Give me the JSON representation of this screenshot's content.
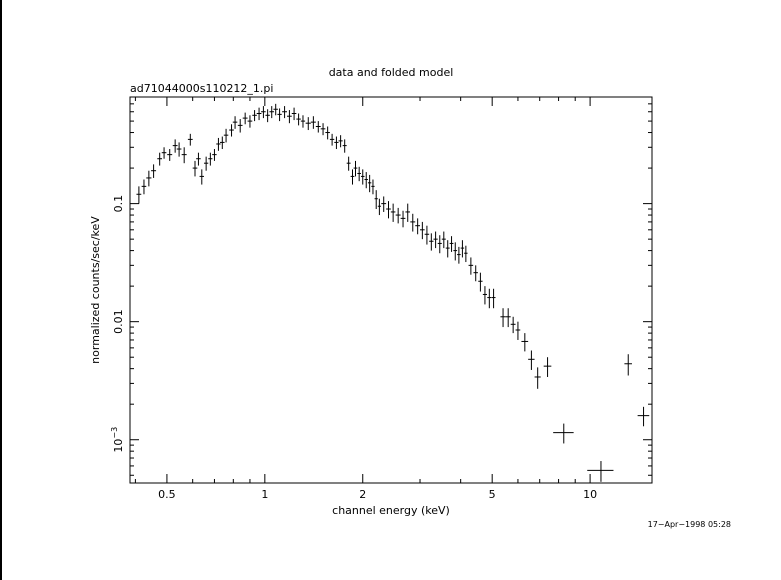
{
  "chart_data": {
    "type": "scatter",
    "title": "data and folded model",
    "subtitle": "ad71044000s110212_1.pi",
    "xlabel": "channel energy (keV)",
    "ylabel": "normalized counts/sec/keV",
    "xscale": "log",
    "yscale": "log",
    "xlim": [
      0.385,
      15.5
    ],
    "ylim": [
      0.00043,
      0.8
    ],
    "xticks": [
      {
        "value": 0.5,
        "label": "0.5"
      },
      {
        "value": 1,
        "label": "1"
      },
      {
        "value": 2,
        "label": "2"
      },
      {
        "value": 5,
        "label": "5"
      },
      {
        "value": 10,
        "label": "10"
      }
    ],
    "yticks": [
      {
        "value": 0.1,
        "label": "0.1"
      },
      {
        "value": 0.01,
        "label": "0.01"
      },
      {
        "value": 0.001,
        "label": "10",
        "exp": "−3"
      }
    ],
    "timestamp": "17−Apr−1998 05:28",
    "grid": false,
    "series": [
      {
        "points": [
          [
            0.41,
            0.12,
            0.02,
            0.02
          ],
          [
            0.425,
            0.14,
            0.02,
            0.02
          ],
          [
            0.44,
            0.165,
            0.025,
            0.025
          ],
          [
            0.455,
            0.19,
            0.025,
            0.025
          ],
          [
            0.475,
            0.24,
            0.03,
            0.03
          ],
          [
            0.49,
            0.27,
            0.03,
            0.03
          ],
          [
            0.51,
            0.26,
            0.03,
            0.03
          ],
          [
            0.53,
            0.31,
            0.04,
            0.04
          ],
          [
            0.545,
            0.29,
            0.04,
            0.04
          ],
          [
            0.565,
            0.26,
            0.04,
            0.04
          ],
          [
            0.59,
            0.35,
            0.04,
            0.04
          ],
          [
            0.61,
            0.2,
            0.03,
            0.03
          ],
          [
            0.625,
            0.24,
            0.03,
            0.03
          ],
          [
            0.64,
            0.17,
            0.025,
            0.025
          ],
          [
            0.66,
            0.22,
            0.03,
            0.03
          ],
          [
            0.68,
            0.24,
            0.03,
            0.03
          ],
          [
            0.7,
            0.26,
            0.03,
            0.03
          ],
          [
            0.72,
            0.32,
            0.04,
            0.04
          ],
          [
            0.74,
            0.33,
            0.04,
            0.04
          ],
          [
            0.76,
            0.38,
            0.05,
            0.05
          ],
          [
            0.79,
            0.42,
            0.05,
            0.05
          ],
          [
            0.81,
            0.49,
            0.06,
            0.06
          ],
          [
            0.84,
            0.46,
            0.06,
            0.06
          ],
          [
            0.87,
            0.53,
            0.06,
            0.06
          ],
          [
            0.9,
            0.5,
            0.06,
            0.06
          ],
          [
            0.93,
            0.56,
            0.06,
            0.06
          ],
          [
            0.96,
            0.58,
            0.07,
            0.07
          ],
          [
            0.99,
            0.6,
            0.07,
            0.07
          ],
          [
            1.02,
            0.56,
            0.07,
            0.07
          ],
          [
            1.05,
            0.6,
            0.07,
            0.07
          ],
          [
            1.08,
            0.63,
            0.07,
            0.07
          ],
          [
            1.11,
            0.57,
            0.07,
            0.07
          ],
          [
            1.15,
            0.6,
            0.07,
            0.07
          ],
          [
            1.19,
            0.55,
            0.07,
            0.07
          ],
          [
            1.23,
            0.58,
            0.07,
            0.07
          ],
          [
            1.27,
            0.52,
            0.06,
            0.06
          ],
          [
            1.31,
            0.5,
            0.06,
            0.06
          ],
          [
            1.36,
            0.48,
            0.06,
            0.06
          ],
          [
            1.41,
            0.49,
            0.06,
            0.06
          ],
          [
            1.46,
            0.45,
            0.05,
            0.05
          ],
          [
            1.51,
            0.43,
            0.05,
            0.05
          ],
          [
            1.56,
            0.4,
            0.05,
            0.05
          ],
          [
            1.61,
            0.35,
            0.04,
            0.04
          ],
          [
            1.66,
            0.33,
            0.04,
            0.04
          ],
          [
            1.71,
            0.34,
            0.04,
            0.04
          ],
          [
            1.76,
            0.31,
            0.04,
            0.04
          ],
          [
            1.81,
            0.22,
            0.03,
            0.03
          ],
          [
            1.86,
            0.17,
            0.025,
            0.025
          ],
          [
            1.9,
            0.2,
            0.03,
            0.03
          ],
          [
            1.95,
            0.18,
            0.025,
            0.025
          ],
          [
            2.0,
            0.17,
            0.025,
            0.025
          ],
          [
            2.05,
            0.16,
            0.025,
            0.025
          ],
          [
            2.1,
            0.15,
            0.025,
            0.025
          ],
          [
            2.15,
            0.14,
            0.02,
            0.02
          ],
          [
            2.2,
            0.11,
            0.02,
            0.02
          ],
          [
            2.25,
            0.095,
            0.015,
            0.015
          ],
          [
            2.32,
            0.1,
            0.015,
            0.015
          ],
          [
            2.4,
            0.09,
            0.015,
            0.015
          ],
          [
            2.48,
            0.085,
            0.015,
            0.015
          ],
          [
            2.57,
            0.08,
            0.012,
            0.012
          ],
          [
            2.66,
            0.075,
            0.012,
            0.012
          ],
          [
            2.75,
            0.085,
            0.015,
            0.015
          ],
          [
            2.85,
            0.07,
            0.012,
            0.012
          ],
          [
            2.95,
            0.065,
            0.01,
            0.01
          ],
          [
            3.05,
            0.06,
            0.01,
            0.01
          ],
          [
            3.15,
            0.055,
            0.01,
            0.01
          ],
          [
            3.25,
            0.048,
            0.008,
            0.008
          ],
          [
            3.35,
            0.05,
            0.008,
            0.008
          ],
          [
            3.45,
            0.046,
            0.008,
            0.008
          ],
          [
            3.55,
            0.05,
            0.008,
            0.008
          ],
          [
            3.65,
            0.042,
            0.007,
            0.007
          ],
          [
            3.75,
            0.046,
            0.007,
            0.007
          ],
          [
            3.85,
            0.04,
            0.007,
            0.007
          ],
          [
            3.95,
            0.037,
            0.006,
            0.006
          ],
          [
            4.05,
            0.042,
            0.007,
            0.007
          ],
          [
            4.15,
            0.038,
            0.006,
            0.006
          ],
          [
            4.3,
            0.03,
            0.005,
            0.005
          ],
          [
            4.45,
            0.026,
            0.004,
            0.004
          ],
          [
            4.6,
            0.022,
            0.004,
            0.004
          ],
          [
            4.75,
            0.017,
            0.003,
            0.003
          ],
          [
            4.9,
            0.016,
            0.003,
            0.003
          ],
          [
            5.05,
            0.016,
            0.003,
            0.003
          ],
          [
            5.4,
            0.011,
            0.002,
            0.002
          ],
          [
            5.6,
            0.011,
            0.002,
            0.002
          ],
          [
            5.8,
            0.0095,
            0.0015,
            0.0015
          ],
          [
            6.0,
            0.0085,
            0.0015,
            0.0015
          ],
          [
            6.3,
            0.0068,
            0.0012,
            0.0012
          ],
          [
            6.6,
            0.0048,
            0.0009,
            0.0009
          ],
          [
            6.9,
            0.0034,
            0.0007,
            0.0007
          ],
          [
            7.4,
            0.0042,
            0.0008,
            0.0008
          ],
          [
            8.3,
            0.00115,
            0.00022,
            0.00022
          ],
          [
            10.8,
            0.00055,
            0.00011,
            0.00011
          ],
          [
            13.1,
            0.0044,
            0.0009,
            0.0009
          ],
          [
            14.6,
            0.0016,
            0.0003,
            0.0003
          ]
        ],
        "xerr": [
          0.007,
          0.007,
          0.008,
          0.008,
          0.008,
          0.008,
          0.009,
          0.009,
          0.009,
          0.01,
          0.01,
          0.01,
          0.01,
          0.01,
          0.01,
          0.01,
          0.011,
          0.011,
          0.012,
          0.012,
          0.013,
          0.013,
          0.014,
          0.015,
          0.015,
          0.015,
          0.016,
          0.016,
          0.016,
          0.017,
          0.017,
          0.017,
          0.02,
          0.02,
          0.02,
          0.02,
          0.02,
          0.025,
          0.025,
          0.025,
          0.025,
          0.025,
          0.025,
          0.025,
          0.025,
          0.025,
          0.025,
          0.025,
          0.025,
          0.025,
          0.025,
          0.025,
          0.025,
          0.025,
          0.025,
          0.025,
          0.04,
          0.04,
          0.04,
          0.045,
          0.045,
          0.045,
          0.05,
          0.05,
          0.05,
          0.05,
          0.05,
          0.05,
          0.05,
          0.05,
          0.05,
          0.05,
          0.05,
          0.05,
          0.05,
          0.05,
          0.07,
          0.07,
          0.07,
          0.07,
          0.07,
          0.07,
          0.1,
          0.1,
          0.1,
          0.1,
          0.15,
          0.15,
          0.15,
          0.2,
          0.6,
          1.0,
          0.35,
          0.6
        ]
      }
    ]
  }
}
